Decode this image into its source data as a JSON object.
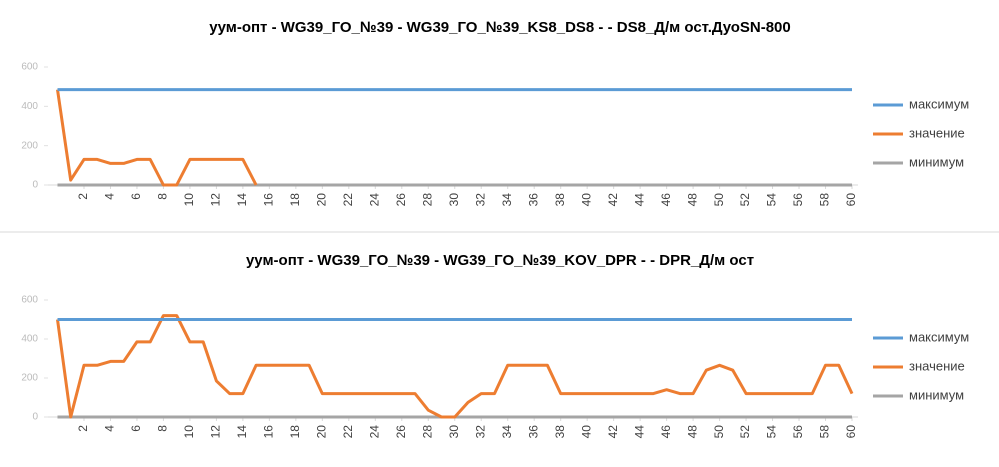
{
  "chart_data": [
    {
      "type": "line",
      "title": "уум-опт - WG39_ГО_№39 - WG39_ГО_№39_KS8_DS8 -  - DS8_Д/м ост.ДуоSN-800",
      "x": [
        0,
        1,
        2,
        3,
        4,
        5,
        6,
        7,
        8,
        9,
        10,
        11,
        12,
        13,
        14,
        15,
        16,
        17,
        18,
        19,
        20,
        21,
        22,
        23,
        24,
        25,
        26,
        27,
        28,
        29,
        30,
        31,
        32,
        33,
        34,
        35,
        36,
        37,
        38,
        39,
        40,
        41,
        42,
        43,
        44,
        45,
        46,
        47,
        48,
        49,
        50,
        51,
        52,
        53,
        54,
        55,
        56,
        57,
        58,
        59,
        60
      ],
      "xlim": [
        0,
        60
      ],
      "xticks": [
        2,
        4,
        6,
        8,
        10,
        12,
        14,
        16,
        18,
        20,
        22,
        24,
        26,
        28,
        30,
        32,
        34,
        36,
        38,
        40,
        42,
        44,
        46,
        48,
        50,
        52,
        54,
        56,
        58,
        60
      ],
      "ylim": [
        0,
        600
      ],
      "yticks": [
        0,
        200,
        400,
        600
      ],
      "grid": false,
      "legend": "right",
      "series": [
        {
          "name": "максимум",
          "color": "#5b9bd5",
          "values": [
            485,
            485,
            485,
            485,
            485,
            485,
            485,
            485,
            485,
            485,
            485,
            485,
            485,
            485,
            485,
            485,
            485,
            485,
            485,
            485,
            485,
            485,
            485,
            485,
            485,
            485,
            485,
            485,
            485,
            485,
            485,
            485,
            485,
            485,
            485,
            485,
            485,
            485,
            485,
            485,
            485,
            485,
            485,
            485,
            485,
            485,
            485,
            485,
            485,
            485,
            485,
            485,
            485,
            485,
            485,
            485,
            485,
            485,
            485,
            485,
            485
          ]
        },
        {
          "name": "значение",
          "color": "#ed7d31",
          "values": [
            485,
            25,
            130,
            130,
            110,
            110,
            130,
            130,
            0,
            0,
            130,
            130,
            130,
            130,
            130,
            0,
            null,
            null,
            null,
            null,
            null,
            null,
            null,
            null,
            null,
            null,
            null,
            null,
            null,
            null,
            null,
            null,
            null,
            null,
            null,
            null,
            null,
            null,
            null,
            null,
            null,
            null,
            null,
            null,
            null,
            null,
            null,
            null,
            null,
            null,
            null,
            null,
            null,
            null,
            null,
            null,
            null,
            null,
            null,
            null,
            null
          ]
        },
        {
          "name": "минимум",
          "color": "#a5a5a5",
          "values": [
            0,
            0,
            0,
            0,
            0,
            0,
            0,
            0,
            0,
            0,
            0,
            0,
            0,
            0,
            0,
            0,
            0,
            0,
            0,
            0,
            0,
            0,
            0,
            0,
            0,
            0,
            0,
            0,
            0,
            0,
            0,
            0,
            0,
            0,
            0,
            0,
            0,
            0,
            0,
            0,
            0,
            0,
            0,
            0,
            0,
            0,
            0,
            0,
            0,
            0,
            0,
            0,
            0,
            0,
            0,
            0,
            0,
            0,
            0,
            0,
            0
          ]
        }
      ]
    },
    {
      "type": "line",
      "title": "уум-опт - WG39_ГО_№39 - WG39_ГО_№39_KOV_DPR -  - DPR_Д/м ост",
      "x": [
        0,
        1,
        2,
        3,
        4,
        5,
        6,
        7,
        8,
        9,
        10,
        11,
        12,
        13,
        14,
        15,
        16,
        17,
        18,
        19,
        20,
        21,
        22,
        23,
        24,
        25,
        26,
        27,
        28,
        29,
        30,
        31,
        32,
        33,
        34,
        35,
        36,
        37,
        38,
        39,
        40,
        41,
        42,
        43,
        44,
        45,
        46,
        47,
        48,
        49,
        50,
        51,
        52,
        53,
        54,
        55,
        56,
        57,
        58,
        59,
        60
      ],
      "xlim": [
        0,
        60
      ],
      "xticks": [
        2,
        4,
        6,
        8,
        10,
        12,
        14,
        16,
        18,
        20,
        22,
        24,
        26,
        28,
        30,
        32,
        34,
        36,
        38,
        40,
        42,
        44,
        46,
        48,
        50,
        52,
        54,
        56,
        58,
        60
      ],
      "ylim": [
        0,
        600
      ],
      "yticks": [
        0,
        200,
        400,
        600
      ],
      "grid": false,
      "legend": "right",
      "series": [
        {
          "name": "максимум",
          "color": "#5b9bd5",
          "values": [
            500,
            500,
            500,
            500,
            500,
            500,
            500,
            500,
            500,
            500,
            500,
            500,
            500,
            500,
            500,
            500,
            500,
            500,
            500,
            500,
            500,
            500,
            500,
            500,
            500,
            500,
            500,
            500,
            500,
            500,
            500,
            500,
            500,
            500,
            500,
            500,
            500,
            500,
            500,
            500,
            500,
            500,
            500,
            500,
            500,
            500,
            500,
            500,
            500,
            500,
            500,
            500,
            500,
            500,
            500,
            500,
            500,
            500,
            500,
            500,
            500
          ]
        },
        {
          "name": "значение",
          "color": "#ed7d31",
          "values": [
            500,
            0,
            265,
            265,
            285,
            285,
            385,
            385,
            520,
            520,
            385,
            385,
            185,
            120,
            120,
            265,
            265,
            265,
            265,
            265,
            120,
            120,
            120,
            120,
            120,
            120,
            120,
            120,
            35,
            0,
            0,
            75,
            120,
            120,
            265,
            265,
            265,
            265,
            120,
            120,
            120,
            120,
            120,
            120,
            120,
            120,
            140,
            120,
            120,
            240,
            265,
            240,
            120,
            120,
            120,
            120,
            120,
            120,
            265,
            265,
            120
          ]
        },
        {
          "name": "минимум",
          "color": "#a5a5a5",
          "values": [
            0,
            0,
            0,
            0,
            0,
            0,
            0,
            0,
            0,
            0,
            0,
            0,
            0,
            0,
            0,
            0,
            0,
            0,
            0,
            0,
            0,
            0,
            0,
            0,
            0,
            0,
            0,
            0,
            0,
            0,
            0,
            0,
            0,
            0,
            0,
            0,
            0,
            0,
            0,
            0,
            0,
            0,
            0,
            0,
            0,
            0,
            0,
            0,
            0,
            0,
            0,
            0,
            0,
            0,
            0,
            0,
            0,
            0,
            0,
            0,
            0
          ]
        }
      ]
    }
  ]
}
